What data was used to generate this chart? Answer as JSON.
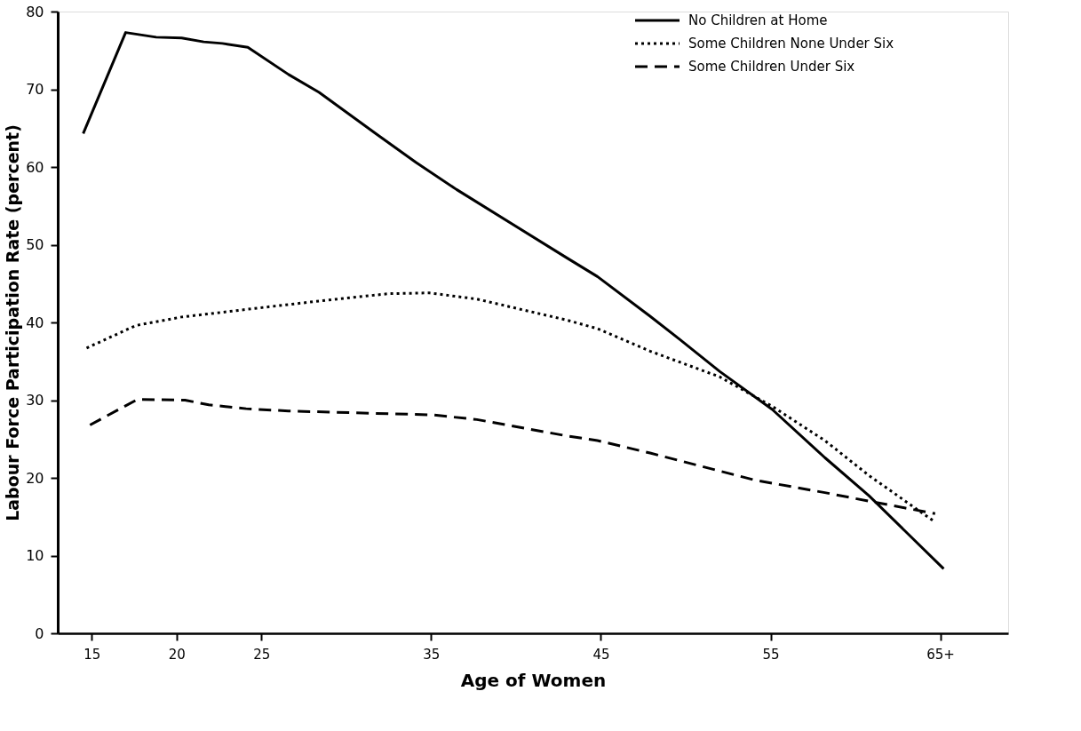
{
  "chart_data": {
    "type": "line",
    "xlabel": "Age of Women",
    "ylabel": "Labour Force Participation Rate (percent)",
    "xlim": [
      13,
      69
    ],
    "ylim": [
      0,
      80
    ],
    "xticks": [
      15,
      20,
      25,
      35,
      45,
      55,
      {
        "value": 65,
        "label": "65+"
      }
    ],
    "yticks": [
      0,
      10,
      20,
      30,
      40,
      50,
      60,
      70,
      80
    ],
    "grid": false,
    "legend": "top right",
    "marker": "none",
    "series": [
      {
        "name": "No Children at Home",
        "color": "#000000",
        "line_style": "solid",
        "x": [
          14.5,
          17.0,
          18.8,
          20.3,
          21.6,
          22.7,
          24.2,
          26.6,
          28.4,
          31.8,
          34.1,
          36.5,
          43.0,
          44.8,
          47.9,
          49.6,
          52.0,
          55.1,
          58.2,
          60.8,
          65.2
        ],
        "values": [
          64.3,
          77.3,
          76.7,
          76.6,
          76.1,
          75.9,
          75.4,
          71.9,
          69.6,
          64.2,
          60.6,
          57.1,
          48.3,
          45.9,
          40.8,
          37.9,
          33.7,
          28.8,
          22.6,
          17.7,
          8.3
        ]
      },
      {
        "name": "Some Children None Under Six",
        "color": "#000000",
        "line_style": "dotted",
        "x": [
          14.7,
          17.6,
          20.3,
          21.9,
          24.6,
          28.6,
          32.5,
          34.9,
          37.7,
          43.0,
          44.8,
          47.9,
          52.0,
          55.1,
          58.2,
          60.8,
          64.7
        ],
        "values": [
          36.7,
          39.6,
          40.7,
          41.1,
          41.8,
          42.8,
          43.7,
          43.8,
          43.0,
          40.3,
          39.2,
          36.3,
          33.0,
          29.2,
          24.8,
          20.3,
          14.3
        ]
      },
      {
        "name": "Some Children Under Six",
        "color": "#000000",
        "line_style": "dashed",
        "x": [
          14.9,
          17.7,
          20.5,
          21.9,
          24.1,
          26.6,
          35.1,
          37.7,
          43.0,
          44.8,
          47.9,
          54.1,
          58.2,
          60.8,
          64.7
        ],
        "values": [
          26.8,
          30.1,
          30.0,
          29.4,
          28.9,
          28.6,
          28.1,
          27.5,
          25.4,
          24.8,
          23.2,
          19.7,
          18.1,
          17.0,
          15.4
        ]
      }
    ]
  }
}
